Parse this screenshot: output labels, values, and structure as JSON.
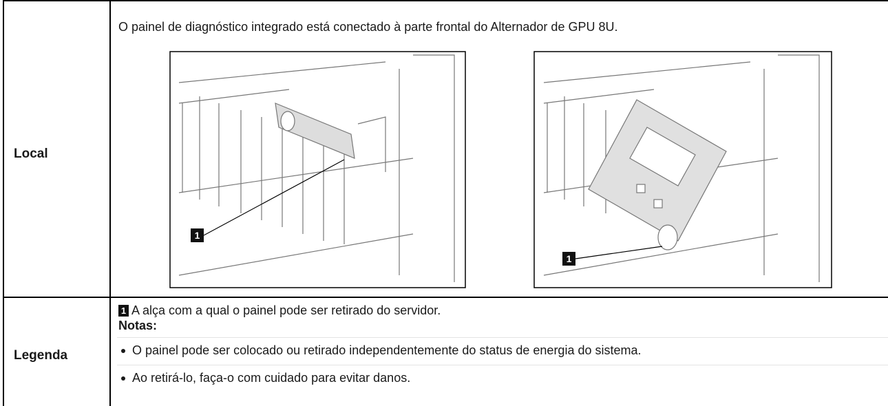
{
  "table": {
    "rows": [
      {
        "header": "Local",
        "description": "O painel de diagnóstico integrado está conectado à parte frontal do Alternador de GPU 8U.",
        "figures": [
          {
            "callout": "1"
          },
          {
            "callout": "1"
          }
        ]
      },
      {
        "header": "Legenda",
        "legend": {
          "callout": "1",
          "text": "A alça com a qual o painel pode ser retirado do servidor."
        },
        "notes_title": "Notas:",
        "notes": [
          "O painel pode ser colocado ou retirado independentemente do status de energia do sistema.",
          "Ao retirá-lo, faça-o com cuidado para evitar danos."
        ]
      }
    ]
  }
}
